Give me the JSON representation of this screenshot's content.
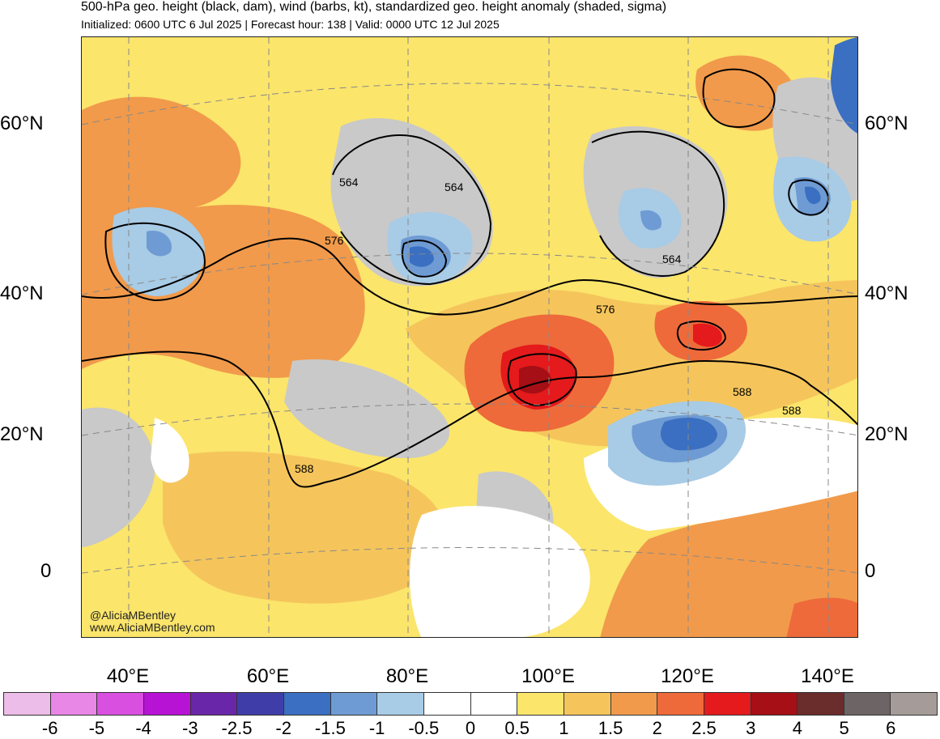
{
  "header": {
    "title": "500-hPa geo. height (black, dam), wind (barbs, kt), standardized geo. height anomaly (shaded, sigma)",
    "subtitle": "Initialized: 0600 UTC 6 Jul 2025 | Forecast hour: 138 | Valid: 0000 UTC 12 Jul 2025"
  },
  "map": {
    "lat_labels": [
      "60°N",
      "40°N",
      "20°N",
      "0"
    ],
    "lon_labels": [
      "40°E",
      "60°E",
      "80°E",
      "100°E",
      "120°E",
      "140°E"
    ],
    "contour_labels": [
      "564",
      "564",
      "564",
      "576",
      "576",
      "588",
      "588",
      "588"
    ],
    "credit": [
      "@AliciaMBentley",
      "www.AliciaMBentley.com"
    ]
  },
  "colorbar": {
    "colors": [
      "#ecbde8",
      "#e887e6",
      "#d94fe0",
      "#b713d4",
      "#6a26a8",
      "#3f3ea8",
      "#3a6fc2",
      "#6e9bd3",
      "#a8cbe6",
      "#ffffff",
      "#ffffff",
      "#fbe56b",
      "#f5c55c",
      "#f19a4b",
      "#ee6a3a",
      "#e41a1c",
      "#a50f15",
      "#6b2c2c",
      "#6d6565",
      "#a59c9a"
    ],
    "labels": [
      "-6",
      "-5",
      "-4",
      "-3",
      "-2.5",
      "-2",
      "-1.5",
      "-1",
      "-0.5",
      "0",
      "0.5",
      "1",
      "1.5",
      "2",
      "2.5",
      "3",
      "4",
      "5",
      "6"
    ]
  }
}
